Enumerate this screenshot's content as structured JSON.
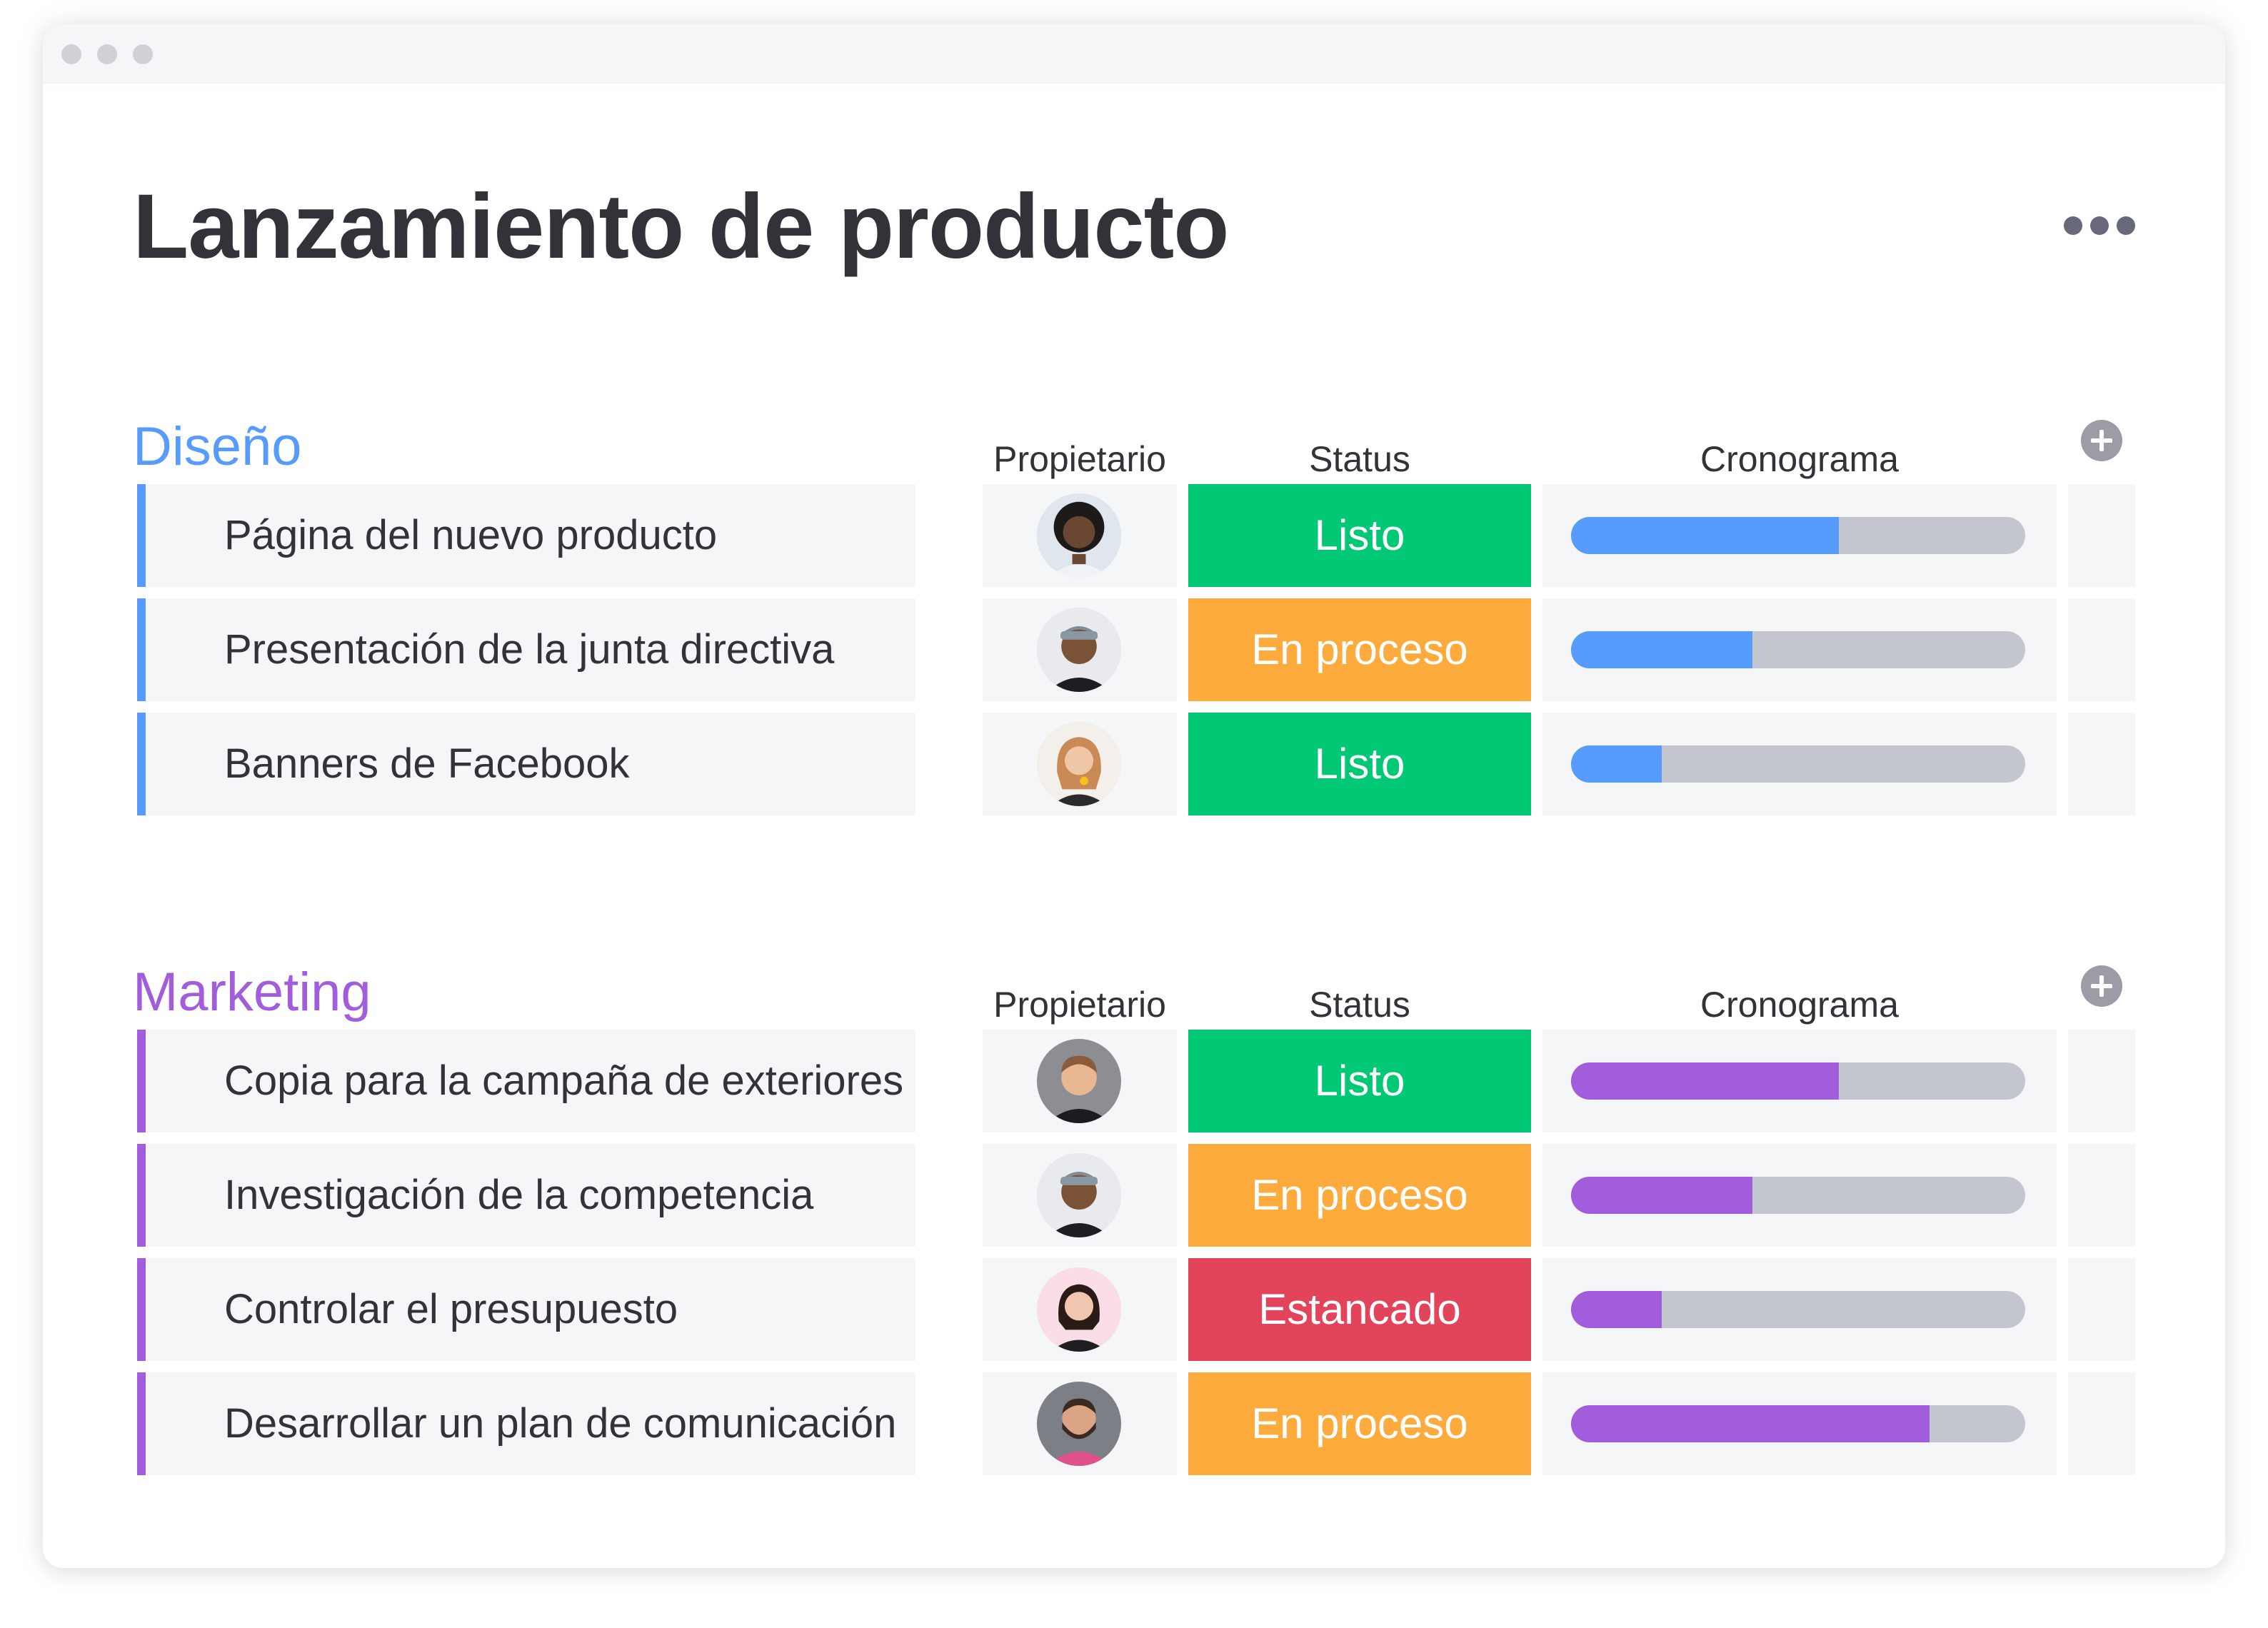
{
  "page_title": "Lanzamiento de producto",
  "colors": {
    "diseno_accent": "#579bfc",
    "marketing_accent": "#a25ddc",
    "status_listo": "#00c875",
    "status_en_proceso": "#fdab3d",
    "status_estancado": "#e2445c"
  },
  "groups": [
    {
      "title": "Diseño",
      "columns": {
        "owner": "Propietario",
        "status": "Status",
        "timeline": "Cronograma"
      },
      "items": [
        {
          "name": "Página del nuevo producto",
          "status": "Listo",
          "progress": 0.59,
          "avatar": "woman-curly-hair-avatar"
        },
        {
          "name": "Presentación de la junta directiva",
          "status": "En proceso",
          "progress": 0.4,
          "avatar": "man-cap-avatar"
        },
        {
          "name": "Banners de Facebook",
          "status": "Listo",
          "progress": 0.2,
          "avatar": "woman-blonde-avatar"
        }
      ]
    },
    {
      "title": "Marketing",
      "columns": {
        "owner": "Propietario",
        "status": "Status",
        "timeline": "Cronograma"
      },
      "items": [
        {
          "name": "Copia para la campaña de exteriores",
          "status": "Listo",
          "progress": 0.59,
          "avatar": "man-short-hair-avatar"
        },
        {
          "name": "Investigación de la competencia",
          "status": "En proceso",
          "progress": 0.4,
          "avatar": "man-cap-avatar"
        },
        {
          "name": "Controlar el presupuesto",
          "status": "Estancado",
          "progress": 0.2,
          "avatar": "woman-dark-hair-avatar"
        },
        {
          "name": "Desarrollar un plan de comunicación",
          "status": "En proceso",
          "progress": 0.79,
          "avatar": "man-beard-avatar"
        }
      ]
    }
  ]
}
